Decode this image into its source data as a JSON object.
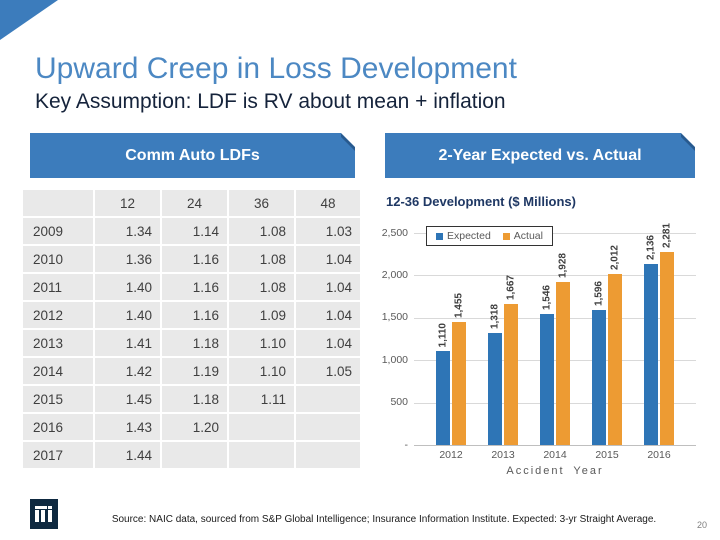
{
  "slide": {
    "title": "Upward Creep in Loss Development",
    "subtitle": "Key Assumption: LDF is RV about mean + inflation",
    "footer": "Source: NAIC data, sourced from S&P Global Intelligence; Insurance Information Institute. Expected: 3-yr Straight Average.",
    "page_number": "20"
  },
  "colors": {
    "banner_blue": "#3C7CBC",
    "title_blue": "#4C88C3",
    "bar_expected_blue": "#2E75B6",
    "bar_actual_orange": "#ED9B33",
    "logo_navy": "#0E2940",
    "table_cell_gray": "#E9E9E9"
  },
  "left_panel": {
    "header": "Comm Auto LDFs",
    "table": {
      "columns": [
        "",
        "12",
        "24",
        "36",
        "48"
      ],
      "rows": [
        {
          "year": "2009",
          "values": [
            "1.34",
            "1.14",
            "1.08",
            "1.03"
          ]
        },
        {
          "year": "2010",
          "values": [
            "1.36",
            "1.16",
            "1.08",
            "1.04"
          ]
        },
        {
          "year": "2011",
          "values": [
            "1.40",
            "1.16",
            "1.08",
            "1.04"
          ]
        },
        {
          "year": "2012",
          "values": [
            "1.40",
            "1.16",
            "1.09",
            "1.04"
          ]
        },
        {
          "year": "2013",
          "values": [
            "1.41",
            "1.18",
            "1.10",
            "1.04"
          ]
        },
        {
          "year": "2014",
          "values": [
            "1.42",
            "1.19",
            "1.10",
            "1.05"
          ]
        },
        {
          "year": "2015",
          "values": [
            "1.45",
            "1.18",
            "1.11",
            ""
          ]
        },
        {
          "year": "2016",
          "values": [
            "1.43",
            "1.20",
            "",
            ""
          ]
        },
        {
          "year": "2017",
          "values": [
            "1.44",
            "",
            "",
            ""
          ]
        }
      ]
    }
  },
  "right_panel": {
    "header": "2-Year Expected vs. Actual"
  },
  "chart_data": {
    "type": "bar",
    "title": "12-36 Development ($ Millions)",
    "categories": [
      "2012",
      "2013",
      "2014",
      "2015",
      "2016"
    ],
    "series": [
      {
        "name": "Expected",
        "color": "#2E75B6",
        "values": [
          1110,
          1318,
          1546,
          1596,
          2136
        ]
      },
      {
        "name": "Actual",
        "color": "#ED9B33",
        "values": [
          1455,
          1667,
          1928,
          2012,
          2281
        ]
      }
    ],
    "data_labels": {
      "Expected": [
        "1,110",
        "1,318",
        "1,546",
        "1,596",
        "2,136"
      ],
      "Actual": [
        "1,455",
        "1,667",
        "1,928",
        "2,012",
        "2,281"
      ]
    },
    "xlabel": "Accident Year",
    "ylabel": "",
    "ylim": [
      0,
      2500
    ],
    "yticks": [
      {
        "v": 2500,
        "label": "2,500"
      },
      {
        "v": 2000,
        "label": "2,000"
      },
      {
        "v": 1500,
        "label": "1,500"
      },
      {
        "v": 1000,
        "label": "1,000"
      },
      {
        "v": 500,
        "label": "500"
      },
      {
        "v": 0,
        "label": "-"
      }
    ],
    "grid": true,
    "legend_position": "top-left"
  }
}
